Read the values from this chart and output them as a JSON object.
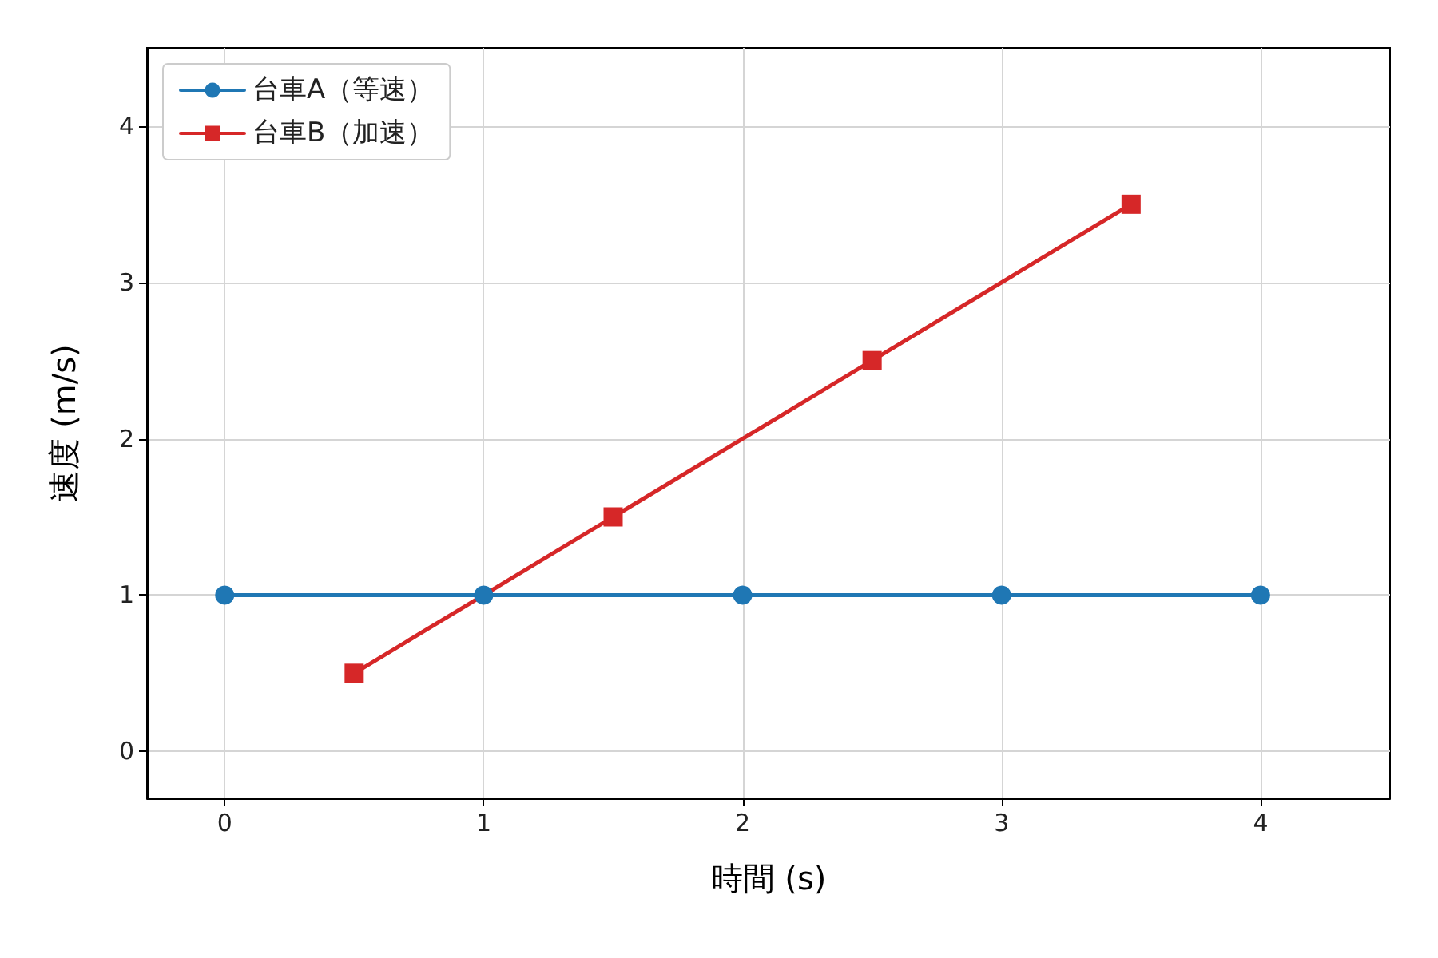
{
  "chart_data": {
    "type": "line",
    "xlabel": "時間 (s)",
    "ylabel": "速度 (m/s)",
    "xlim": [
      -0.3,
      4.5
    ],
    "ylim": [
      -0.3,
      4.5
    ],
    "xticks": [
      0,
      1,
      2,
      3,
      4
    ],
    "yticks": [
      0,
      1,
      2,
      3,
      4
    ],
    "grid": true,
    "legend": "top left",
    "line_style": "solid",
    "series": [
      {
        "name": "台車A（等速）",
        "color": "#1f77b4",
        "marker": "circle",
        "x": [
          0,
          1,
          2,
          3,
          4
        ],
        "values": [
          1,
          1,
          1,
          1,
          1
        ]
      },
      {
        "name": "台車B（加速）",
        "color": "#d62728",
        "marker": "square",
        "x": [
          0.5,
          1.5,
          2.5,
          3.5
        ],
        "values": [
          0.5,
          1.5,
          2.5,
          3.5
        ]
      }
    ]
  }
}
